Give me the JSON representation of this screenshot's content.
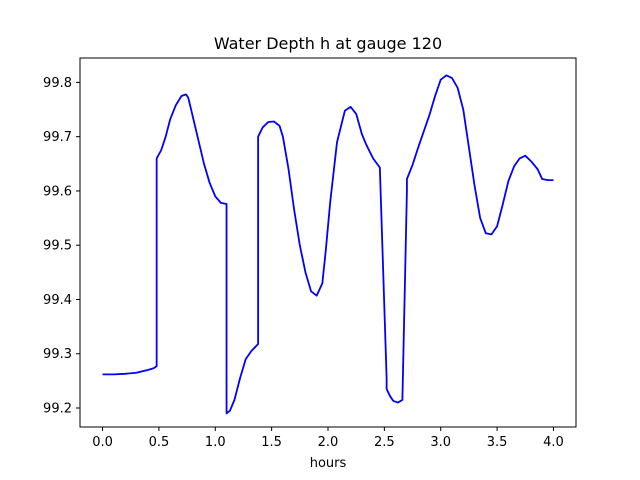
{
  "chart_data": {
    "type": "line",
    "title": "Water Depth h at gauge 120",
    "xlabel": "hours",
    "ylabel": "",
    "xlim": [
      -0.2,
      4.2
    ],
    "ylim": [
      99.165,
      99.845
    ],
    "xticks": [
      0.0,
      0.5,
      1.0,
      1.5,
      2.0,
      2.5,
      3.0,
      3.5,
      4.0
    ],
    "xtick_labels": [
      "0.0",
      "0.5",
      "1.0",
      "1.5",
      "2.0",
      "2.5",
      "3.0",
      "3.5",
      "4.0"
    ],
    "yticks": [
      99.2,
      99.3,
      99.4,
      99.5,
      99.6,
      99.7,
      99.8
    ],
    "ytick_labels": [
      "99.2",
      "99.3",
      "99.4",
      "99.5",
      "99.6",
      "99.7",
      "99.8"
    ],
    "grid": false,
    "series": [
      {
        "color": "#0000ff",
        "x": [
          0.0,
          0.1,
          0.2,
          0.3,
          0.4,
          0.45,
          0.48,
          0.48,
          0.52,
          0.56,
          0.6,
          0.65,
          0.7,
          0.74,
          0.76,
          0.78,
          0.82,
          0.9,
          0.95,
          1.0,
          1.05,
          1.1,
          1.1,
          1.13,
          1.17,
          1.22,
          1.27,
          1.32,
          1.38,
          1.38,
          1.42,
          1.47,
          1.52,
          1.57,
          1.6,
          1.65,
          1.7,
          1.75,
          1.8,
          1.85,
          1.9,
          1.95,
          1.98,
          2.02,
          2.08,
          2.15,
          2.2,
          2.25,
          2.28,
          2.3,
          2.34,
          2.4,
          2.46,
          2.52,
          2.52,
          2.55,
          2.58,
          2.62,
          2.66,
          2.7,
          2.7,
          2.75,
          2.8,
          2.85,
          2.9,
          2.95,
          3.0,
          3.05,
          3.1,
          3.15,
          3.2,
          3.25,
          3.3,
          3.35,
          3.4,
          3.45,
          3.5,
          3.55,
          3.6,
          3.65,
          3.7,
          3.75,
          3.8,
          3.86,
          3.9,
          3.95,
          4.0
        ],
        "y": [
          99.262,
          99.262,
          99.263,
          99.265,
          99.27,
          99.273,
          99.277,
          99.66,
          99.675,
          99.7,
          99.732,
          99.758,
          99.775,
          99.778,
          99.772,
          99.755,
          99.72,
          99.65,
          99.615,
          99.59,
          99.578,
          99.576,
          99.19,
          99.195,
          99.215,
          99.255,
          99.29,
          99.305,
          99.318,
          99.7,
          99.717,
          99.727,
          99.728,
          99.72,
          99.7,
          99.64,
          99.565,
          99.5,
          99.45,
          99.415,
          99.407,
          99.43,
          99.49,
          99.58,
          99.69,
          99.748,
          99.755,
          99.742,
          99.72,
          99.705,
          99.685,
          99.66,
          99.643,
          99.255,
          99.235,
          99.222,
          99.213,
          99.21,
          99.215,
          99.6,
          99.622,
          99.648,
          99.68,
          99.71,
          99.74,
          99.775,
          99.805,
          99.813,
          99.808,
          99.79,
          99.75,
          99.68,
          99.61,
          99.55,
          99.522,
          99.52,
          99.535,
          99.575,
          99.618,
          99.645,
          99.66,
          99.665,
          99.655,
          99.64,
          99.622,
          99.62,
          99.62
        ]
      }
    ]
  }
}
